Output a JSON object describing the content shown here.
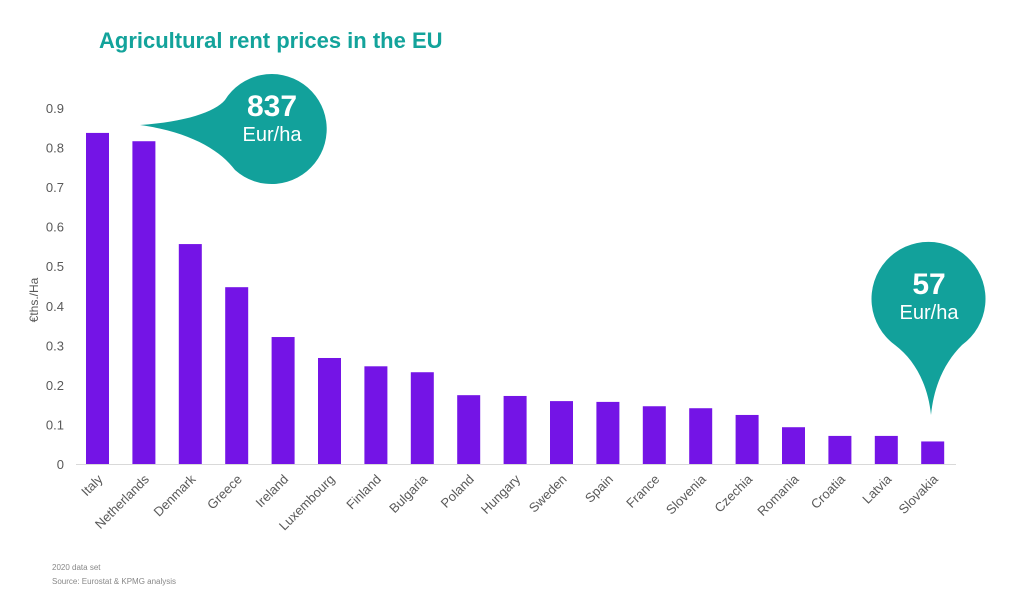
{
  "chart_data": {
    "type": "bar",
    "title": "Agricultural rent prices in the EU",
    "xlabel": "",
    "ylabel": "€ths./Ha",
    "ylim": [
      0,
      0.9
    ],
    "yticks": [
      "0",
      "0.1",
      "0.2",
      "0.3",
      "0.4",
      "0.5",
      "0.6",
      "0.7",
      "0.8",
      "0.9"
    ],
    "categories": [
      "Italy",
      "Netherlands",
      "Denmark",
      "Greece",
      "Ireland",
      "Luxembourg",
      "Finland",
      "Bulgaria",
      "Poland",
      "Hungary",
      "Sweden",
      "Spain",
      "France",
      "Slovenia",
      "Czechia",
      "Romania",
      "Croatia",
      "Latvia",
      "Slovakia"
    ],
    "values": [
      0.837,
      0.816,
      0.556,
      0.447,
      0.321,
      0.268,
      0.247,
      0.232,
      0.174,
      0.172,
      0.159,
      0.157,
      0.146,
      0.141,
      0.124,
      0.093,
      0.071,
      0.071,
      0.057
    ],
    "grid": false,
    "bar_color": "#7414e6",
    "annotations": [
      {
        "value": "837",
        "unit": "Eur/ha",
        "target": "Italy"
      },
      {
        "value": "57",
        "unit": "Eur/ha",
        "target": "Slovakia"
      }
    ],
    "annotation_color": "#12a19b"
  },
  "footnotes": {
    "dataset": "2020 data set",
    "source": "Source: Eurostat & KPMG analysis"
  }
}
